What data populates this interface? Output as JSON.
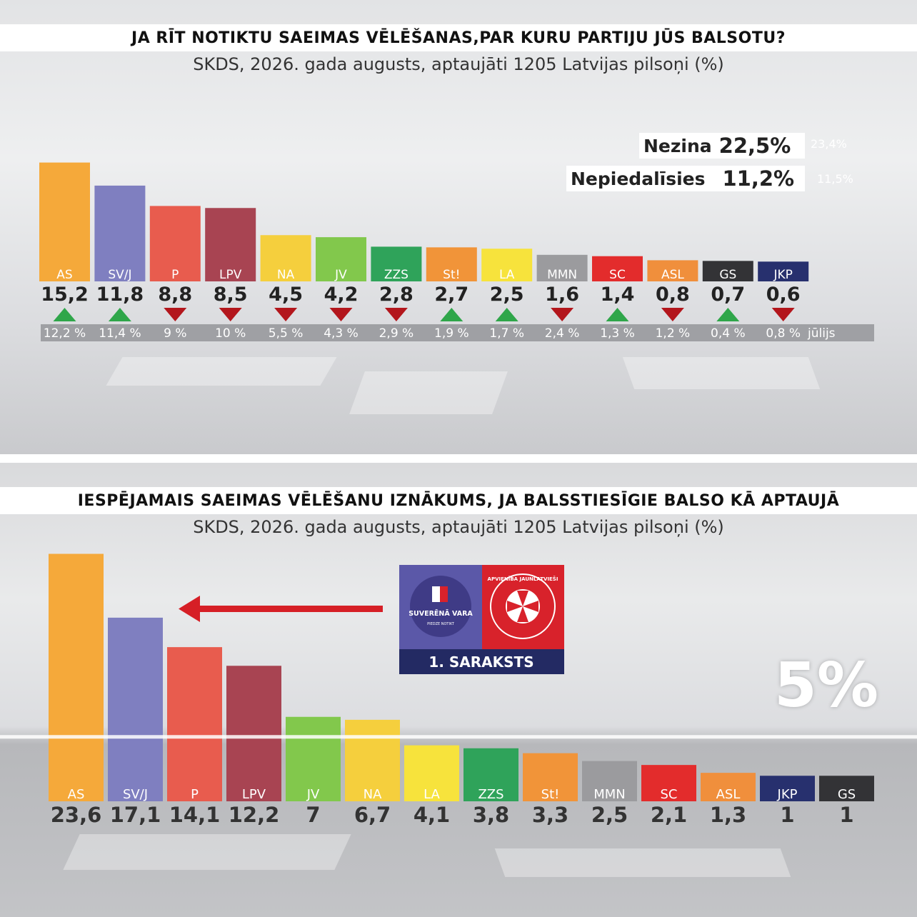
{
  "poll": {
    "title": "JA RĪT NOTIKTU SAEIMAS VĒLĒŠANAS,PAR KURU PARTIJU JŪS BALSOTU?",
    "subtitle": "SKDS, 2026. gada augusts, aptaujāti 1205 Latvijas pilsoņi (%)",
    "undecided": {
      "label": "Nezina",
      "value": "22,5%",
      "previous": "23,4%"
    },
    "nonvoters": {
      "label": "Nepiedalīsies",
      "value": "11,2%",
      "previous": "11,5%"
    },
    "previous_month_label": "jūlijs"
  },
  "projection": {
    "title": "IESPĒJAMAIS SAEIMAS VĒLĒŠANU IZNĀKUMS, JA BALSSTIESĪGIE BALSO KĀ APTAUJĀ",
    "subtitle": "SKDS, 2026. gada augusts, aptaujāti 1205 Latvijas pilsoņi (%)",
    "threshold": "5%",
    "list": {
      "label": "1. SARAKSTS",
      "party_left": "SUVERĒNĀ VARA",
      "party_left_sub": "PIEDZE NOTIKT",
      "party_right": "APVIENĪBA JAUNLATVIEŠI"
    }
  },
  "colors": {
    "AS": "#f5a93a",
    "SV/J": "#7f7fc0",
    "P": "#e85c4e",
    "LPV": "#a84452",
    "NA": "#f5cf3d",
    "JV": "#82c84c",
    "ZZS": "#2fa35a",
    "St!": "#f19439",
    "LA": "#f7e33c",
    "MMN": "#9b9b9e",
    "SC": "#e32c2c",
    "ASL": "#f08f3c",
    "GS": "#333336",
    "JKP": "#27306e",
    "up": "#2fa64a",
    "down": "#b3161c",
    "arrow": "#d61f26",
    "navy": "#232a63"
  },
  "chart_data": [
    {
      "type": "bar",
      "title": "JA RĪT NOTIKTU SAEIMAS VĒLĒŠANAS,PAR KURU PARTIJU JŪS BALSOTU?",
      "categories": [
        "AS",
        "SV/J",
        "P",
        "LPV",
        "NA",
        "JV",
        "ZZS",
        "St!",
        "LA",
        "MMN",
        "SC",
        "ASL",
        "GS",
        "JKP"
      ],
      "values": [
        15.2,
        11.8,
        8.8,
        8.5,
        4.5,
        4.2,
        2.8,
        2.7,
        2.5,
        1.6,
        1.4,
        0.8,
        0.7,
        0.6
      ],
      "value_labels": [
        "15,2",
        "11,8",
        "8,8",
        "8,5",
        "4,5",
        "4,2",
        "2,8",
        "2,7",
        "2,5",
        "1,6",
        "1,4",
        "0,8",
        "0,7",
        "0,6"
      ],
      "previous": [
        12.2,
        11.4,
        9,
        10,
        5.5,
        4.3,
        2.9,
        1.9,
        1.7,
        2.4,
        1.3,
        1.2,
        0.4,
        0.8
      ],
      "previous_labels": [
        "12,2 %",
        "11,4 %",
        "9 %",
        "10 %",
        "5,5 %",
        "4,3 %",
        "2,9 %",
        "1,9 %",
        "1,7 %",
        "2,4 %",
        "1,3 %",
        "1,2 %",
        "0,4 %",
        "0,8 %"
      ],
      "trend": [
        "up",
        "up",
        "down",
        "down",
        "down",
        "down",
        "down",
        "up",
        "up",
        "down",
        "up",
        "down",
        "up",
        "down"
      ],
      "ylim": [
        0,
        16
      ]
    },
    {
      "type": "bar",
      "title": "IESPĒJAMAIS SAEIMAS VĒLĒŠANU IZNĀKUMS, JA BALSSTIESĪGIE BALSO KĀ APTAUJĀ",
      "categories": [
        "AS",
        "SV/J",
        "P",
        "LPV",
        "JV",
        "NA",
        "LA",
        "ZZS",
        "St!",
        "MMN",
        "SC",
        "ASL",
        "JKP",
        "GS"
      ],
      "values": [
        23.6,
        17.1,
        14.1,
        12.2,
        7,
        6.7,
        4.1,
        3.8,
        3.3,
        2.5,
        2.1,
        1.3,
        1,
        1
      ],
      "value_labels": [
        "23,6",
        "17,1",
        "14,1",
        "12,2",
        "7",
        "6,7",
        "4,1",
        "3,8",
        "3,3",
        "2,5",
        "2,1",
        "1,3",
        "1",
        "1"
      ],
      "threshold": 5,
      "ylim": [
        0,
        24
      ]
    }
  ]
}
